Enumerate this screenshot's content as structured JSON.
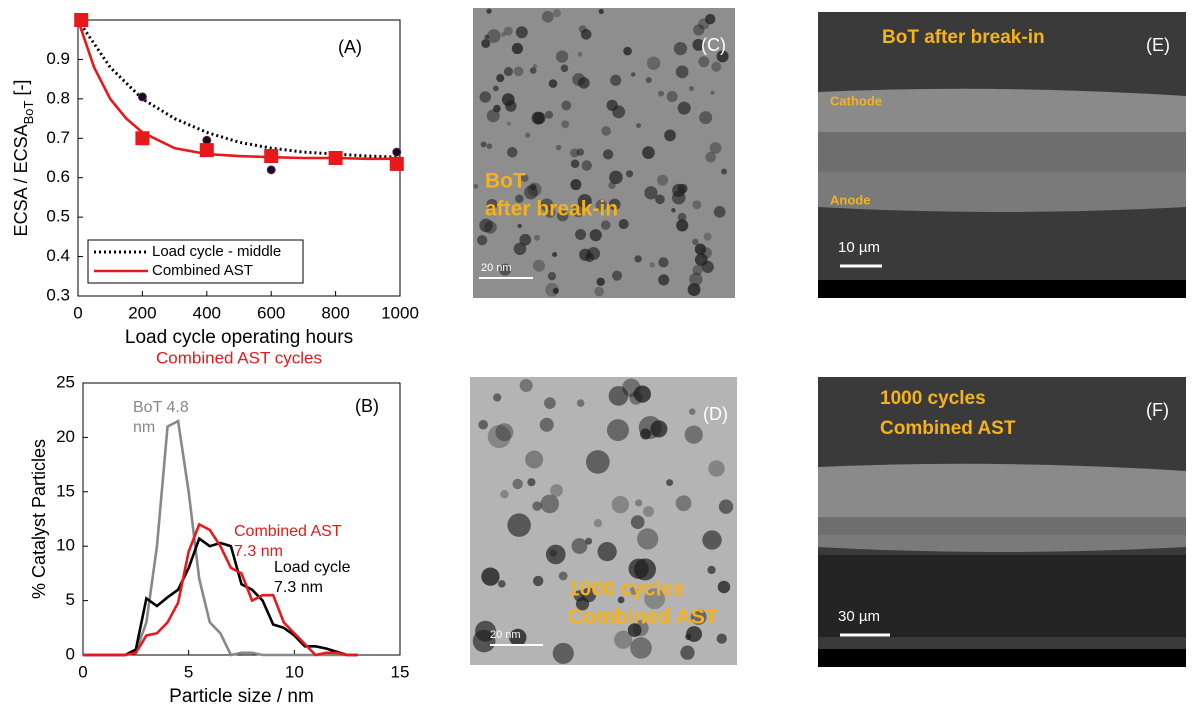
{
  "chart_data": [
    {
      "type": "line",
      "panel": "(A)",
      "xlabel": "Load cycle operating hours",
      "xlabel2": "Combined AST cycles",
      "ylabel": "ECSA / ECSA",
      "ylabel_sub": "BoT",
      "ylabel_suffix": " [-]",
      "xlim": [
        0,
        1000
      ],
      "xticks": [
        0,
        200,
        400,
        600,
        800,
        1000
      ],
      "ylim": [
        0.3,
        1.0
      ],
      "yticks": [
        0.3,
        0.4,
        0.5,
        0.6,
        0.7,
        0.8,
        0.9
      ],
      "legend": "lower left",
      "series": [
        {
          "name": "Load cycle - middle",
          "color": "#000000",
          "style": "dotted",
          "x": [
            0,
            100,
            200,
            300,
            400,
            500,
            600,
            700,
            800,
            900,
            1000
          ],
          "values": [
            1.0,
            0.88,
            0.8,
            0.75,
            0.715,
            0.69,
            0.675,
            0.665,
            0.66,
            0.655,
            0.652
          ]
        },
        {
          "name": "Combined AST",
          "color": "#e8191b",
          "style": "solid",
          "x": [
            0,
            50,
            100,
            150,
            200,
            300,
            400,
            500,
            600,
            700,
            800,
            900,
            1000
          ],
          "values": [
            1.0,
            0.88,
            0.8,
            0.75,
            0.715,
            0.675,
            0.66,
            0.655,
            0.652,
            0.65,
            0.65,
            0.648,
            0.648
          ]
        },
        {
          "color": "#1a0a1a",
          "marker": "circle",
          "x": [
            10,
            200,
            400,
            600,
            800,
            990
          ],
          "values": [
            1.0,
            0.805,
            0.695,
            0.62,
            0.655,
            0.665
          ]
        },
        {
          "color": "#e8191b",
          "marker": "square",
          "x": [
            10,
            200,
            400,
            600,
            800,
            990
          ],
          "values": [
            1.0,
            0.7,
            0.67,
            0.655,
            0.65,
            0.635
          ]
        }
      ]
    },
    {
      "type": "line",
      "panel": "(B)",
      "xlabel": "Particle size / nm",
      "ylabel": "% Catalyst Particles",
      "xlim": [
        0,
        15
      ],
      "xticks": [
        0,
        5,
        10,
        15
      ],
      "ylim": [
        0,
        25
      ],
      "yticks": [
        0,
        5,
        10,
        15,
        20,
        25
      ],
      "x": [
        0,
        0.5,
        1,
        1.5,
        2,
        2.5,
        3,
        3.5,
        4,
        4.5,
        5,
        5.5,
        6,
        6.5,
        7,
        7.5,
        8,
        8.5,
        9,
        9.5,
        10,
        10.5,
        11,
        11.5,
        12,
        12.5,
        13
      ],
      "series": [
        {
          "color": "#888888",
          "values": [
            0,
            0,
            0,
            0,
            0,
            0.3,
            3,
            10,
            21,
            21.5,
            15,
            7,
            3,
            2,
            0,
            0.2,
            0.2,
            0,
            0,
            0,
            0,
            0,
            0,
            0,
            0,
            0,
            0
          ],
          "annotation": [
            "BoT 4.8",
            "nm"
          ]
        },
        {
          "color": "#000000",
          "values": [
            0,
            0,
            0,
            0,
            0,
            0.5,
            5.2,
            4.5,
            5.3,
            6,
            8,
            10.7,
            10,
            10.3,
            10,
            6.5,
            6,
            5,
            2.8,
            2.5,
            1.8,
            0.8,
            0.8,
            0.6,
            0.3,
            0,
            0
          ],
          "annotation": [
            "Load cycle",
            "7.3 nm"
          ]
        },
        {
          "color": "#e8191b",
          "values": [
            0,
            0,
            0,
            0,
            0,
            0.2,
            1.8,
            2,
            3,
            4.8,
            9.5,
            12,
            11.5,
            10,
            8,
            7.5,
            5,
            5.5,
            5.5,
            3,
            2,
            1,
            0,
            0.2,
            0.2,
            0,
            0
          ],
          "annotation": [
            "Combined AST",
            "7.3 nm"
          ]
        }
      ]
    }
  ],
  "images": [
    {
      "panel": "(C)",
      "caption": [
        "BoT",
        "after break-in"
      ],
      "scale": "20 nm"
    },
    {
      "panel": "(D)",
      "caption": [
        "1000 cycles",
        "Combined AST"
      ],
      "scale": "20 nm"
    },
    {
      "panel": "(E)",
      "caption": [
        "BoT after break-in"
      ],
      "layers": [
        "Cathode",
        "Anode"
      ],
      "scale": "10 µm"
    },
    {
      "panel": "(F)",
      "caption": [
        "1000 cycles",
        "Combined AST"
      ],
      "scale": "30 µm"
    }
  ]
}
